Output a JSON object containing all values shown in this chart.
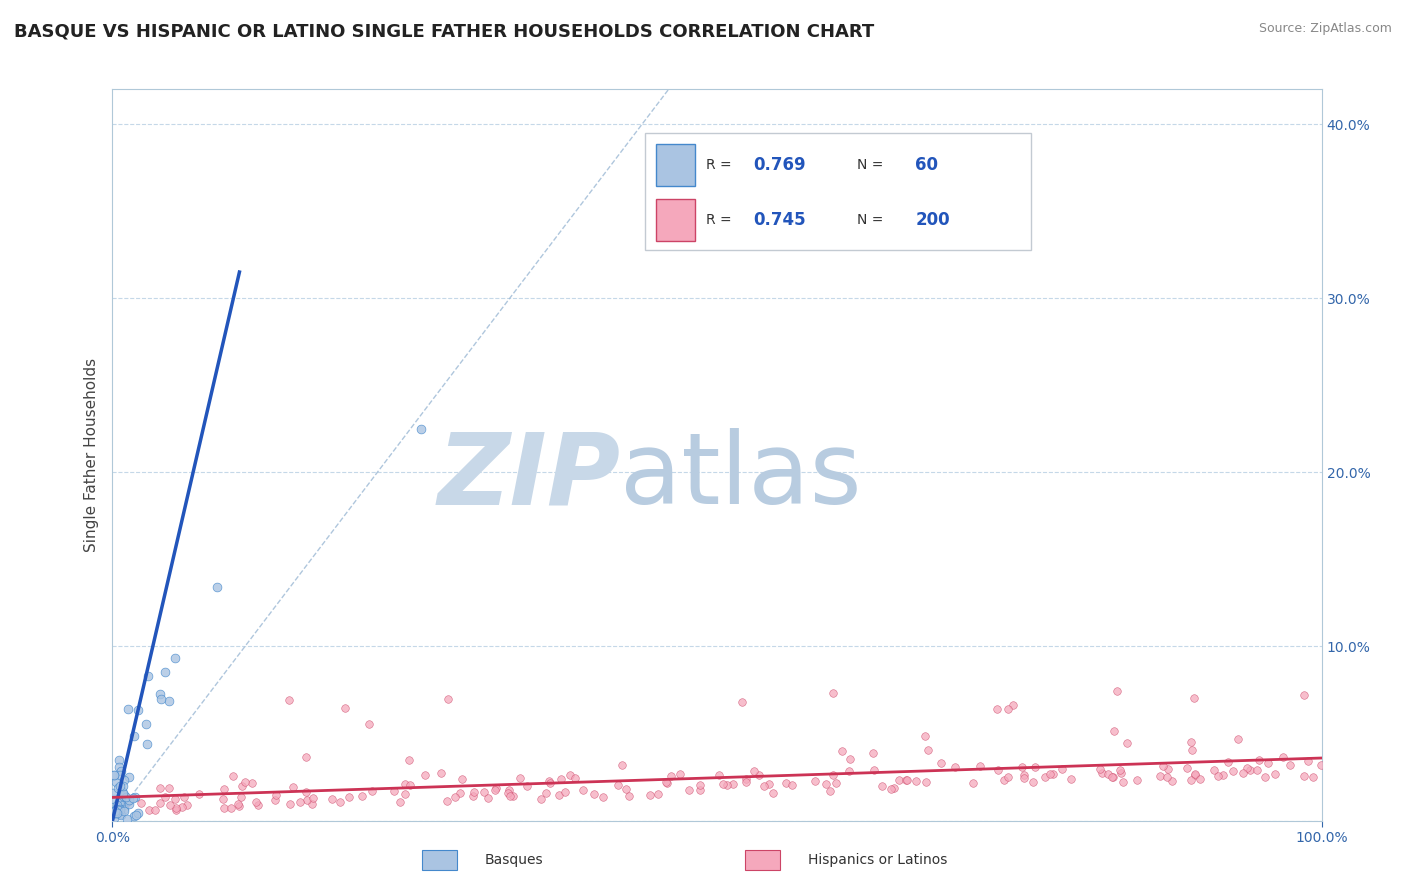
{
  "title": "BASQUE VS HISPANIC OR LATINO SINGLE FATHER HOUSEHOLDS CORRELATION CHART",
  "source_text": "Source: ZipAtlas.com",
  "ylabel": "Single Father Households",
  "xlim": [
    0.0,
    1.0
  ],
  "ylim": [
    0.0,
    0.42
  ],
  "yticks": [
    0.0,
    0.1,
    0.2,
    0.3,
    0.4
  ],
  "ytick_labels_right": [
    "",
    "10.0%",
    "20.0%",
    "30.0%",
    "40.0%"
  ],
  "xtick_vals": [
    0.0,
    1.0
  ],
  "xtick_labels": [
    "0.0%",
    "100.0%"
  ],
  "basque_fill": "#aac4e2",
  "basque_edge": "#4488cc",
  "hispanic_fill": "#f5a8bc",
  "hispanic_edge": "#cc4466",
  "basque_line_color": "#2255bb",
  "hispanic_line_color": "#cc3355",
  "ref_line_color": "#9bb8d4",
  "watermark_zip_color": "#c8d8e8",
  "watermark_atlas_color": "#b8cce0",
  "legend_R1": "0.769",
  "legend_N1": "60",
  "legend_R2": "0.745",
  "legend_N2": "200",
  "legend_label1": "Basques",
  "legend_label2": "Hispanics or Latinos",
  "title_fontsize": 13,
  "axis_label_fontsize": 11,
  "tick_fontsize": 10,
  "legend_fontsize": 12
}
